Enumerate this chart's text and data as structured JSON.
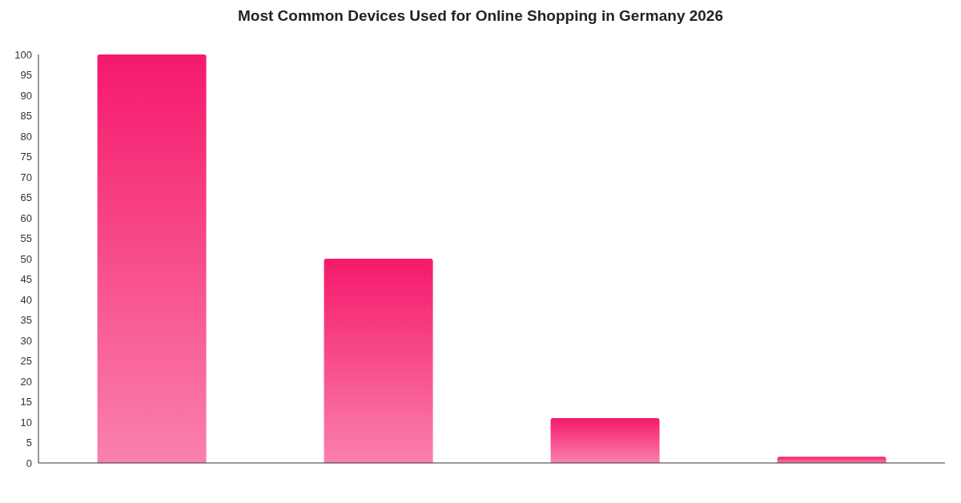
{
  "chart_data": {
    "type": "bar",
    "title": "Most Common Devices Used for Online Shopping in Germany 2026",
    "categories": [
      null,
      null,
      null,
      null
    ],
    "values": [
      100,
      50,
      11,
      1.5
    ],
    "color": "#f5196b",
    "ylim": [
      0,
      100
    ],
    "yticks": [
      0,
      5,
      10,
      15,
      20,
      25,
      30,
      35,
      40,
      45,
      50,
      55,
      60,
      65,
      70,
      75,
      80,
      85,
      90,
      95,
      100
    ],
    "grid": false,
    "legend": false
  }
}
